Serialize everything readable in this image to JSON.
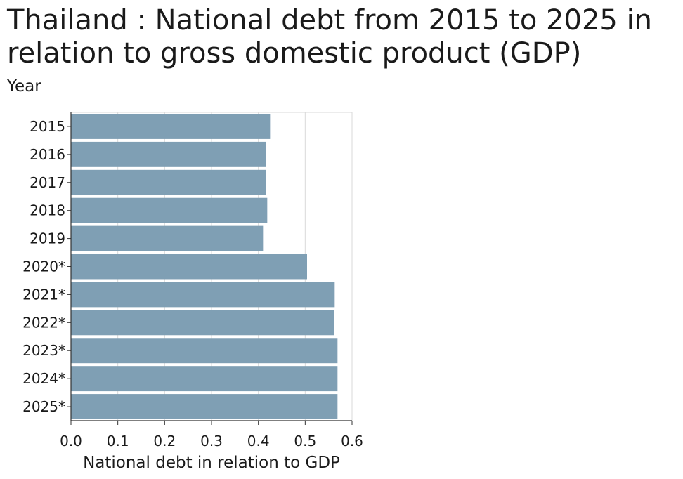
{
  "chart_data": {
    "type": "bar",
    "orientation": "horizontal",
    "title": "Thailand : National debt from 2015 to 2025 in relation to gross domestic product (GDP)",
    "xlabel": "National debt in relation to GDP",
    "ylabel": "Year",
    "categories": [
      "2015",
      "2016",
      "2017",
      "2018",
      "2019",
      "2020*",
      "2021*",
      "2022*",
      "2023*",
      "2024*",
      "2025*"
    ],
    "values": [
      0.425,
      0.417,
      0.417,
      0.419,
      0.41,
      0.504,
      0.563,
      0.561,
      0.569,
      0.569,
      0.569
    ],
    "xlim": [
      0,
      0.6
    ],
    "xticks": [
      "0.0",
      "0.1",
      "0.2",
      "0.3",
      "0.4",
      "0.5",
      "0.6"
    ],
    "grid": true,
    "bar_color": "#7f9fb4",
    "grid_color": "#d9d9d9"
  }
}
